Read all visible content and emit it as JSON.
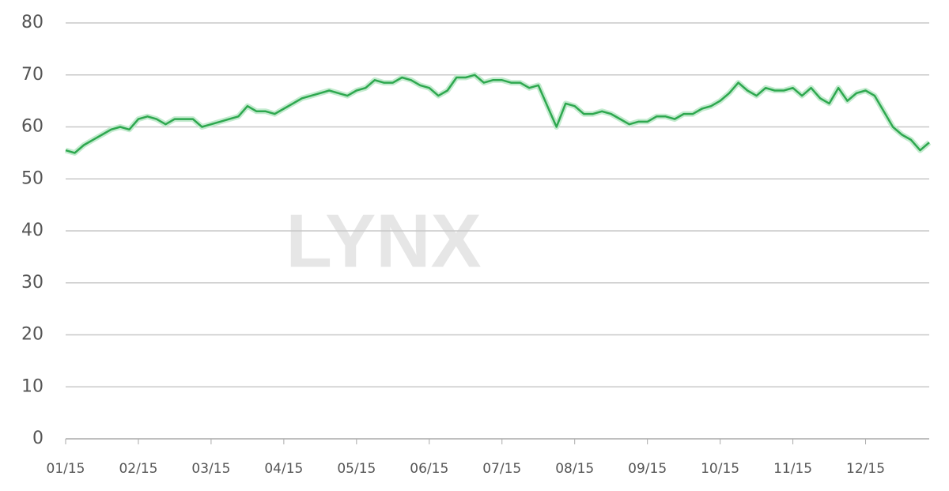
{
  "chart_data": {
    "type": "line",
    "watermark": "LYNX",
    "categories": [
      "01/15",
      null,
      null,
      null,
      null,
      null,
      null,
      null,
      "02/15",
      null,
      null,
      null,
      null,
      null,
      null,
      null,
      "03/15",
      null,
      null,
      null,
      null,
      null,
      null,
      null,
      "04/15",
      null,
      null,
      null,
      null,
      null,
      null,
      null,
      "05/15",
      null,
      null,
      null,
      null,
      null,
      null,
      null,
      "06/15",
      null,
      null,
      null,
      null,
      null,
      null,
      null,
      "07/15",
      null,
      null,
      null,
      null,
      null,
      null,
      null,
      "08/15",
      null,
      null,
      null,
      null,
      null,
      null,
      null,
      "09/15",
      null,
      null,
      null,
      null,
      null,
      null,
      null,
      "10/15",
      null,
      null,
      null,
      null,
      null,
      null,
      null,
      "11/15",
      null,
      null,
      null,
      null,
      null,
      null,
      null,
      "12/15",
      null,
      null,
      null,
      null,
      null,
      null,
      null
    ],
    "series": [
      {
        "color": "#2ea84f",
        "values": [
          55.5,
          55,
          56.5,
          57.5,
          58.5,
          59.5,
          60,
          59.5,
          61.5,
          62,
          61.5,
          60.5,
          61.5,
          61.5,
          61.5,
          60,
          60.5,
          61,
          61.5,
          62,
          64,
          63,
          63,
          62.5,
          63.5,
          64.5,
          65.5,
          66,
          66.5,
          67,
          66.5,
          66,
          67,
          67.5,
          69,
          68.5,
          68.5,
          69.5,
          69,
          68,
          67.5,
          66,
          67,
          69.5,
          69.5,
          70,
          68.5,
          69,
          69,
          68.5,
          68.5,
          67.5,
          68,
          64,
          60,
          64.5,
          64,
          62.5,
          62.5,
          63,
          62.5,
          61.5,
          60.5,
          61,
          61,
          62,
          62,
          61.5,
          62.5,
          62.5,
          63.5,
          64,
          65,
          66.5,
          68.5,
          67,
          66,
          67.5,
          67,
          67,
          67.5,
          66,
          67.5,
          65.5,
          64.5,
          67.5,
          65,
          66.5,
          67,
          66,
          63,
          60,
          58.5,
          57.5,
          55.5,
          57
        ]
      }
    ],
    "ylim": [
      0,
      80
    ],
    "yticks": [
      0,
      10,
      20,
      30,
      40,
      50,
      60,
      70,
      80
    ],
    "grid": true
  }
}
